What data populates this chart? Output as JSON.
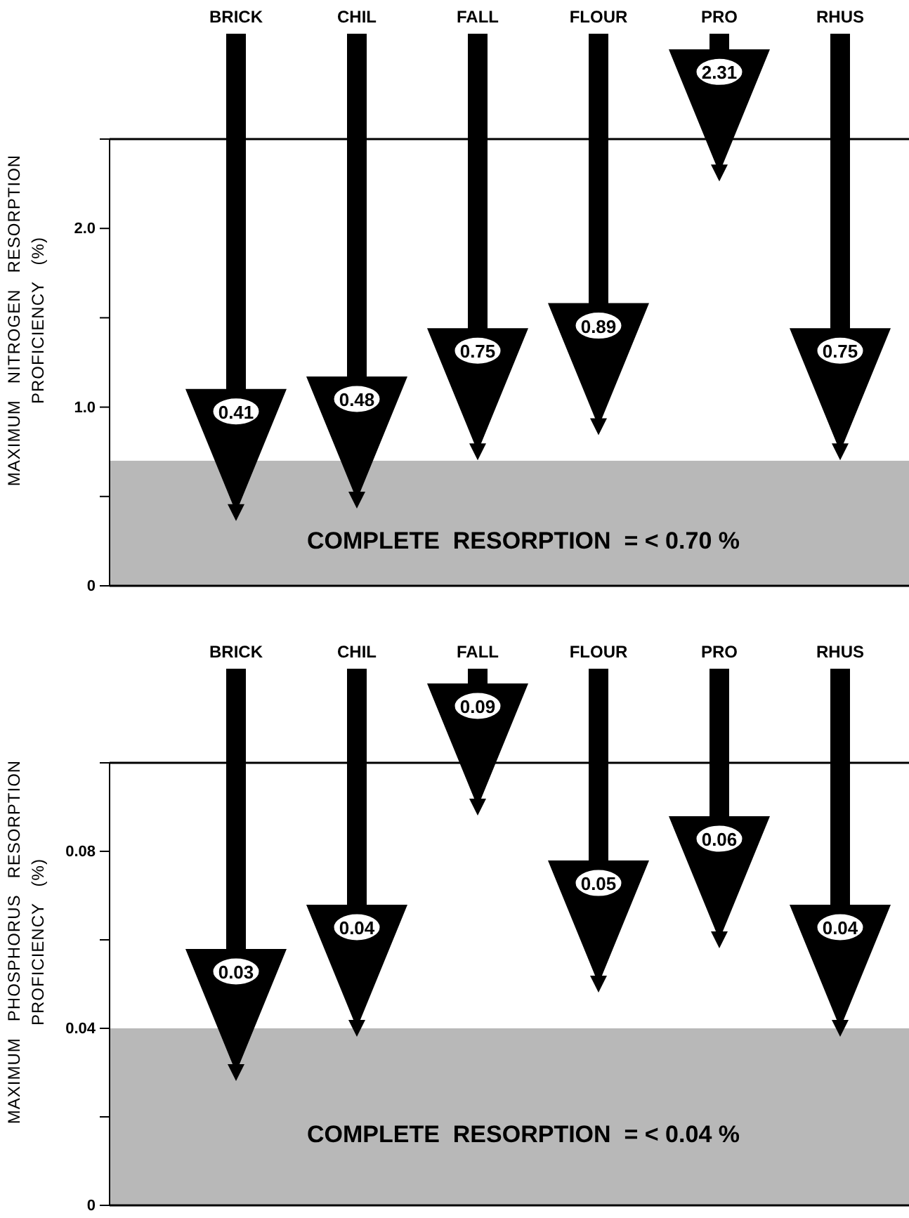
{
  "chart_data": [
    {
      "type": "scatter",
      "marker": "triangle",
      "categories": [
        "BRICK",
        "CHIL",
        "FALL",
        "FLOUR",
        "PRO",
        "RHUS"
      ],
      "values": [
        0.41,
        0.48,
        0.75,
        0.89,
        2.31,
        0.75
      ],
      "color": "#000000",
      "ylabel": "MAXIMUM   NITROGEN   RESORPTION\nPROFICIENCY   (%)",
      "ylim": [
        0,
        2.5
      ],
      "yticks": [
        0,
        {
          "value": 0.5,
          "label": null
        },
        {
          "value": 1,
          "label": "1.0"
        },
        {
          "value": 1.5,
          "label": null
        },
        {
          "value": 2,
          "label": "2.0"
        }
      ],
      "annotations": [
        "0.41",
        "0.48",
        "0.75",
        "0.89",
        "2.31",
        "0.75"
      ],
      "bands": [
        {
          "axis": "y",
          "from": 0,
          "to": 0.7,
          "label": "COMPLETE  RESORPTION  = < 0.70 %",
          "color": "#b8b8b8"
        }
      ]
    },
    {
      "type": "scatter",
      "marker": "triangle",
      "categories": [
        "BRICK",
        "CHIL",
        "FALL",
        "FLOUR",
        "PRO",
        "RHUS"
      ],
      "values": [
        0.03,
        0.04,
        0.09,
        0.05,
        0.06,
        0.04
      ],
      "color": "#000000",
      "ylabel": "MAXIMUM   PHOSPHORUS   RESORPTION\nPROFICIENCY   (%)",
      "ylim": [
        0,
        0.1
      ],
      "yticks": [
        0,
        {
          "value": 0.02,
          "label": null
        },
        {
          "value": 0.04,
          "label": "0.04"
        },
        {
          "value": 0.06,
          "label": null
        },
        {
          "value": 0.08,
          "label": "0.08"
        }
      ],
      "annotations": [
        "0.03",
        "0.04",
        "0.09",
        "0.05",
        "0.06",
        "0.04"
      ],
      "bands": [
        {
          "axis": "y",
          "from": 0,
          "to": 0.04,
          "label": "COMPLETE  RESORPTION  = < 0.04 %",
          "color": "#b8b8b8"
        }
      ]
    }
  ]
}
